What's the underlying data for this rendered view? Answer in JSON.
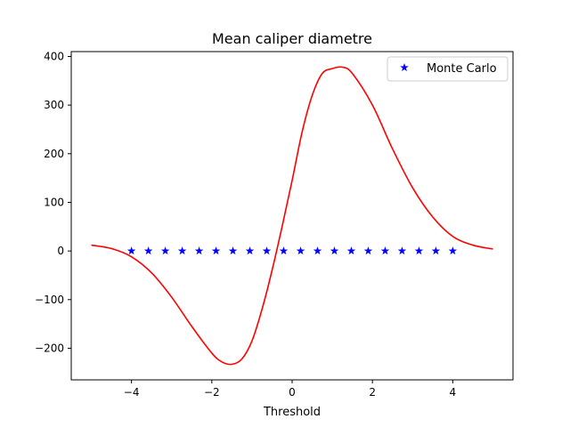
{
  "chart_data": {
    "type": "line",
    "title": "Mean caliper diametre",
    "xlabel": "Threshold",
    "ylabel": "",
    "xlim": [
      -5.5,
      5.5
    ],
    "ylim": [
      -265,
      410
    ],
    "xticks": [
      -4,
      -2,
      0,
      2,
      4
    ],
    "xtick_labels": [
      "−4",
      "−2",
      "0",
      "2",
      "4"
    ],
    "yticks": [
      -200,
      -100,
      0,
      100,
      200,
      300,
      400
    ],
    "ytick_labels": [
      "−200",
      "−100",
      "0",
      "100",
      "200",
      "300",
      "400"
    ],
    "grid": false,
    "legend": {
      "placement": "top-right",
      "entries": [
        "Monte Carlo"
      ]
    },
    "series": [
      {
        "name": "",
        "kind": "line",
        "color": "#ff0000",
        "x": [
          -5.0,
          -4.5,
          -4.0,
          -3.5,
          -3.0,
          -2.5,
          -2.0,
          -1.75,
          -1.5,
          -1.25,
          -1.0,
          -0.75,
          -0.5,
          -0.25,
          0.0,
          0.25,
          0.5,
          0.75,
          1.0,
          1.25,
          1.5,
          2.0,
          2.5,
          3.0,
          3.5,
          4.0,
          4.5,
          5.0
        ],
        "y": [
          12,
          5,
          -12,
          -45,
          -95,
          -155,
          -210,
          -228,
          -233,
          -222,
          -185,
          -120,
          -40,
          50,
          145,
          245,
          320,
          365,
          375,
          378,
          365,
          300,
          210,
          130,
          70,
          30,
          12,
          4
        ]
      },
      {
        "name": "Monte Carlo",
        "kind": "marker",
        "marker": "star",
        "color": "#0000ff",
        "x": [
          -4.0,
          -3.579,
          -3.158,
          -2.737,
          -2.316,
          -1.895,
          -1.474,
          -1.053,
          -0.632,
          -0.211,
          0.211,
          0.632,
          1.053,
          1.474,
          1.895,
          2.316,
          2.737,
          3.158,
          3.579,
          4.0
        ],
        "y": [
          0,
          0,
          0,
          0,
          0,
          0,
          0,
          0,
          0,
          0,
          0,
          0,
          0,
          0,
          0,
          0,
          0,
          0,
          0,
          0
        ]
      }
    ]
  }
}
